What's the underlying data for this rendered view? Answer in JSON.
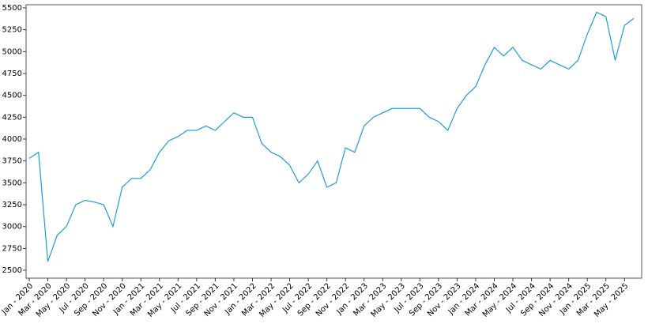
{
  "chart_data": {
    "type": "line",
    "categories": [
      "Jan - 2020",
      null,
      "Mar - 2020",
      null,
      "May - 2020",
      null,
      "Jul - 2020",
      null,
      "Sep - 2020",
      null,
      "Nov - 2020",
      null,
      "Jan - 2021",
      null,
      "Mar - 2021",
      null,
      "May - 2021",
      null,
      "Jul - 2021",
      null,
      "Sep - 2021",
      null,
      "Nov - 2021",
      null,
      "Jan - 2022",
      null,
      "Mar - 2022",
      null,
      "May - 2022",
      null,
      "Jul - 2022",
      null,
      "Sep - 2022",
      null,
      "Nov - 2022",
      null,
      "Jan - 2023",
      null,
      "Mar - 2023",
      null,
      "May - 2023",
      null,
      "Jul - 2023",
      null,
      "Sep - 2023",
      null,
      "Nov - 2023",
      null,
      "Jan - 2024",
      null,
      "Mar - 2024",
      null,
      "May - 2024",
      null,
      "Jul - 2024",
      null,
      "Sep - 2024",
      null,
      "Nov - 2024",
      null,
      "Jan - 2025",
      null,
      "Mar - 2025",
      null,
      "May - 2025",
      null
    ],
    "values": [
      3780,
      3850,
      2600,
      2900,
      3000,
      3250,
      3300,
      3280,
      3250,
      3000,
      3450,
      3550,
      3550,
      3650,
      3850,
      3980,
      4030,
      4100,
      4100,
      4150,
      4100,
      4200,
      4300,
      4250,
      4250,
      3950,
      3850,
      3800,
      3700,
      3500,
      3600,
      3750,
      3450,
      3500,
      3900,
      3850,
      4150,
      4250,
      4300,
      4350,
      4350,
      4350,
      4350,
      4250,
      4200,
      4100,
      4350,
      4500,
      4600,
      4850,
      5050,
      4950,
      5050,
      4900,
      4850,
      4800,
      4900,
      4850,
      4800,
      4900,
      5200,
      5450,
      5400,
      4900,
      5300,
      5380
    ],
    "color": "#1f9bde",
    "ylim": [
      2410,
      5536
    ],
    "yticks": [
      2500,
      2750,
      3000,
      3250,
      3500,
      3750,
      4000,
      4250,
      4500,
      4750,
      5000,
      5250,
      5500
    ]
  }
}
